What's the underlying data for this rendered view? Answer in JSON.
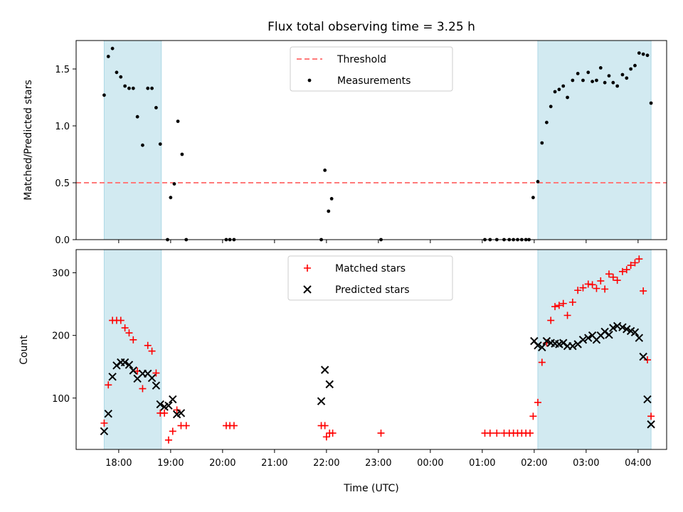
{
  "chart_data": {
    "type": "scatter",
    "title": "Flux total observing time = 3.25 h",
    "xlabel": "Time (UTC)",
    "x_unit": "hours since 18:00 UTC",
    "xlim": [
      -0.82,
      10.55
    ],
    "xticks": [
      0,
      1,
      2,
      3,
      4,
      5,
      6,
      7,
      8,
      9,
      10
    ],
    "xtick_labels": [
      "18:00",
      "19:00",
      "20:00",
      "21:00",
      "22:00",
      "23:00",
      "00:00",
      "01:00",
      "02:00",
      "03:00",
      "04:00"
    ],
    "shaded_intervals": [
      [
        -0.28,
        0.82
      ],
      [
        8.07,
        10.25
      ]
    ],
    "shade_color": "#add8e6",
    "panels": [
      {
        "ylabel": "Matched/Predicted stars",
        "ylim": [
          0,
          1.75
        ],
        "yticks": [
          0.0,
          0.5,
          1.0,
          1.5
        ],
        "ytick_labels": [
          "0.0",
          "0.5",
          "1.0",
          "1.5"
        ],
        "threshold": 0.5,
        "threshold_color": "#ff7a7a",
        "legend": [
          "Threshold",
          "Measurements"
        ],
        "legend_loc": "upper center",
        "series": [
          {
            "name": "Measurements",
            "marker": "dot",
            "color": "#000000",
            "points": [
              [
                -0.28,
                1.27
              ],
              [
                -0.2,
                1.61
              ],
              [
                -0.12,
                1.68
              ],
              [
                -0.04,
                1.47
              ],
              [
                0.04,
                1.43
              ],
              [
                0.12,
                1.35
              ],
              [
                0.2,
                1.33
              ],
              [
                0.28,
                1.33
              ],
              [
                0.36,
                1.08
              ],
              [
                0.46,
                0.83
              ],
              [
                0.56,
                1.33
              ],
              [
                0.64,
                1.33
              ],
              [
                0.72,
                1.16
              ],
              [
                0.8,
                0.84
              ],
              [
                0.94,
                0.0
              ],
              [
                1.0,
                0.37
              ],
              [
                1.07,
                0.49
              ],
              [
                1.14,
                1.04
              ],
              [
                1.22,
                0.75
              ],
              [
                1.3,
                0.0
              ],
              [
                2.07,
                0.0
              ],
              [
                2.14,
                0.0
              ],
              [
                2.22,
                0.0
              ],
              [
                3.9,
                0.0
              ],
              [
                3.97,
                0.61
              ],
              [
                4.04,
                0.25
              ],
              [
                4.1,
                0.36
              ],
              [
                5.05,
                0.0
              ],
              [
                7.05,
                0.0
              ],
              [
                7.15,
                0.0
              ],
              [
                7.28,
                0.0
              ],
              [
                7.42,
                0.0
              ],
              [
                7.52,
                0.0
              ],
              [
                7.6,
                0.0
              ],
              [
                7.68,
                0.0
              ],
              [
                7.76,
                0.0
              ],
              [
                7.84,
                0.0
              ],
              [
                7.9,
                0.0
              ],
              [
                7.98,
                0.37
              ],
              [
                8.07,
                0.51
              ],
              [
                8.15,
                0.85
              ],
              [
                8.24,
                1.03
              ],
              [
                8.32,
                1.17
              ],
              [
                8.4,
                1.3
              ],
              [
                8.48,
                1.32
              ],
              [
                8.56,
                1.35
              ],
              [
                8.64,
                1.25
              ],
              [
                8.74,
                1.4
              ],
              [
                8.84,
                1.46
              ],
              [
                8.94,
                1.4
              ],
              [
                9.04,
                1.47
              ],
              [
                9.12,
                1.39
              ],
              [
                9.2,
                1.4
              ],
              [
                9.28,
                1.51
              ],
              [
                9.36,
                1.38
              ],
              [
                9.44,
                1.44
              ],
              [
                9.52,
                1.38
              ],
              [
                9.6,
                1.35
              ],
              [
                9.7,
                1.45
              ],
              [
                9.78,
                1.42
              ],
              [
                9.86,
                1.5
              ],
              [
                9.94,
                1.53
              ],
              [
                10.02,
                1.64
              ],
              [
                10.1,
                1.63
              ],
              [
                10.18,
                1.62
              ],
              [
                10.25,
                1.2
              ]
            ]
          }
        ]
      },
      {
        "ylabel": "Count",
        "ylim": [
          18,
          337
        ],
        "yticks": [
          100,
          200,
          300
        ],
        "ytick_labels": [
          "100",
          "200",
          "300"
        ],
        "legend": [
          "Matched stars",
          "Predicted stars"
        ],
        "legend_loc": "upper center",
        "series": [
          {
            "name": "Matched stars",
            "marker": "plus",
            "color": "#ff0000",
            "points": [
              [
                -0.28,
                60
              ],
              [
                -0.2,
                121
              ],
              [
                -0.12,
                224
              ],
              [
                -0.04,
                224
              ],
              [
                0.04,
                224
              ],
              [
                0.12,
                212
              ],
              [
                0.2,
                204
              ],
              [
                0.28,
                193
              ],
              [
                0.36,
                143
              ],
              [
                0.46,
                115
              ],
              [
                0.56,
                184
              ],
              [
                0.64,
                175
              ],
              [
                0.72,
                140
              ],
              [
                0.8,
                76
              ],
              [
                0.88,
                76
              ],
              [
                0.96,
                33
              ],
              [
                1.04,
                47
              ],
              [
                1.12,
                81
              ],
              [
                1.2,
                56
              ],
              [
                1.3,
                56
              ],
              [
                2.07,
                56
              ],
              [
                2.14,
                56
              ],
              [
                2.22,
                56
              ],
              [
                3.9,
                56
              ],
              [
                3.97,
                56
              ],
              [
                4.0,
                38
              ],
              [
                4.06,
                44
              ],
              [
                4.12,
                44
              ],
              [
                5.05,
                44
              ],
              [
                7.05,
                44
              ],
              [
                7.15,
                44
              ],
              [
                7.28,
                44
              ],
              [
                7.42,
                44
              ],
              [
                7.52,
                44
              ],
              [
                7.6,
                44
              ],
              [
                7.68,
                44
              ],
              [
                7.76,
                44
              ],
              [
                7.84,
                44
              ],
              [
                7.92,
                44
              ],
              [
                7.98,
                71
              ],
              [
                8.07,
                93
              ],
              [
                8.15,
                157
              ],
              [
                8.24,
                188
              ],
              [
                8.32,
                224
              ],
              [
                8.4,
                246
              ],
              [
                8.48,
                248
              ],
              [
                8.56,
                251
              ],
              [
                8.64,
                232
              ],
              [
                8.74,
                253
              ],
              [
                8.84,
                272
              ],
              [
                8.94,
                276
              ],
              [
                9.04,
                282
              ],
              [
                9.12,
                281
              ],
              [
                9.2,
                275
              ],
              [
                9.28,
                287
              ],
              [
                9.36,
                274
              ],
              [
                9.44,
                298
              ],
              [
                9.52,
                293
              ],
              [
                9.6,
                288
              ],
              [
                9.7,
                302
              ],
              [
                9.78,
                305
              ],
              [
                9.86,
                312
              ],
              [
                9.94,
                316
              ],
              [
                10.02,
                322
              ],
              [
                10.1,
                271
              ],
              [
                10.18,
                161
              ],
              [
                10.25,
                71
              ]
            ]
          },
          {
            "name": "Predicted stars",
            "marker": "x",
            "color": "#000000",
            "points": [
              [
                -0.28,
                47
              ],
              [
                -0.2,
                75
              ],
              [
                -0.12,
                134
              ],
              [
                -0.04,
                152
              ],
              [
                0.04,
                157
              ],
              [
                0.12,
                157
              ],
              [
                0.2,
                153
              ],
              [
                0.28,
                144
              ],
              [
                0.36,
                131
              ],
              [
                0.46,
                139
              ],
              [
                0.56,
                139
              ],
              [
                0.64,
                132
              ],
              [
                0.72,
                120
              ],
              [
                0.8,
                90
              ],
              [
                0.88,
                86
              ],
              [
                0.96,
                88
              ],
              [
                1.04,
                98
              ],
              [
                1.12,
                74
              ],
              [
                1.2,
                76
              ],
              [
                3.9,
                95
              ],
              [
                3.97,
                145
              ],
              [
                4.06,
                122
              ],
              [
                8.0,
                191
              ],
              [
                8.07,
                184
              ],
              [
                8.15,
                181
              ],
              [
                8.24,
                191
              ],
              [
                8.32,
                188
              ],
              [
                8.4,
                187
              ],
              [
                8.48,
                186
              ],
              [
                8.56,
                188
              ],
              [
                8.64,
                183
              ],
              [
                8.74,
                183
              ],
              [
                8.84,
                186
              ],
              [
                8.94,
                193
              ],
              [
                9.04,
                196
              ],
              [
                9.12,
                200
              ],
              [
                9.2,
                193
              ],
              [
                9.28,
                200
              ],
              [
                9.36,
                206
              ],
              [
                9.44,
                201
              ],
              [
                9.52,
                212
              ],
              [
                9.6,
                215
              ],
              [
                9.7,
                213
              ],
              [
                9.78,
                210
              ],
              [
                9.86,
                207
              ],
              [
                9.94,
                205
              ],
              [
                10.02,
                196
              ],
              [
                10.1,
                166
              ],
              [
                10.18,
                98
              ],
              [
                10.25,
                58
              ]
            ]
          }
        ]
      }
    ]
  }
}
